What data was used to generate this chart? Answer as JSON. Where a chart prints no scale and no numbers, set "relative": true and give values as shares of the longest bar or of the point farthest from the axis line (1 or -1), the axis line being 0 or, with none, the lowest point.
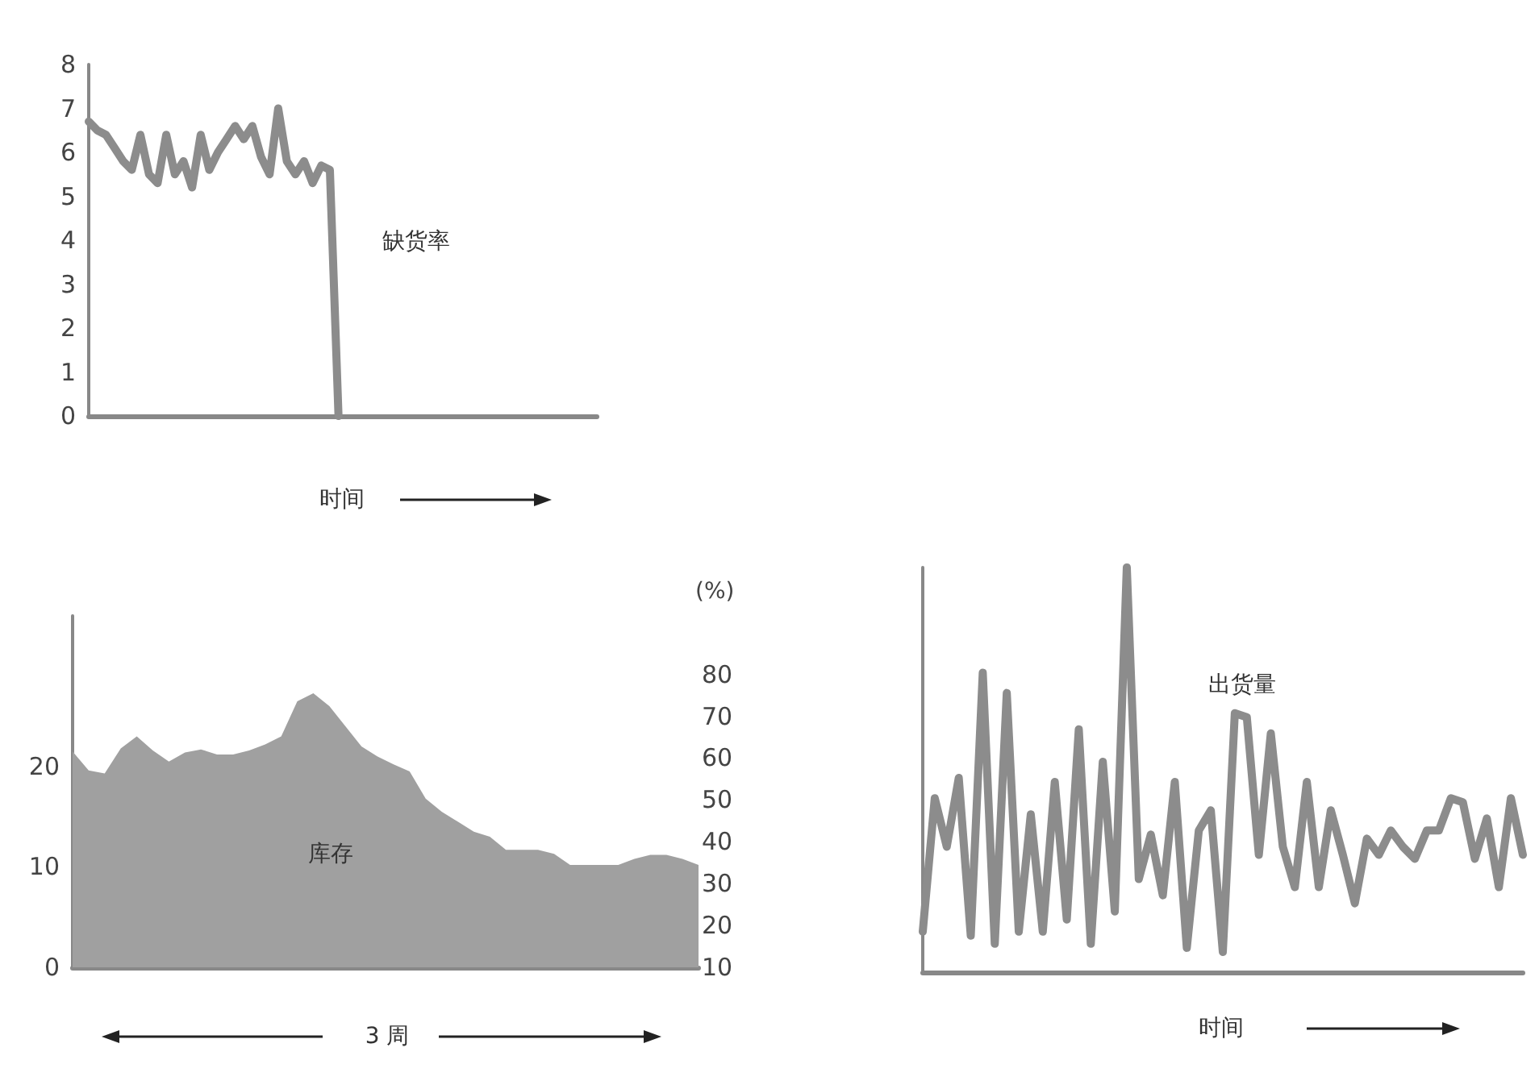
{
  "chart_data": [
    {
      "type": "line",
      "xlabel": "时间",
      "annotations": [
        "缺货率"
      ],
      "marker": "none",
      "categories": [
        null,
        null,
        null,
        null,
        null,
        null,
        null,
        null,
        null,
        null,
        null,
        null,
        null,
        null,
        null,
        null,
        null,
        null,
        null,
        null,
        null,
        null,
        null,
        null,
        null,
        null,
        null,
        null,
        null,
        null,
        null,
        null,
        null,
        null,
        null,
        null,
        null,
        null,
        null,
        null,
        null,
        null,
        null,
        null,
        null,
        null,
        null,
        null,
        null,
        null,
        null,
        null,
        null,
        null,
        null,
        null,
        null,
        null,
        null,
        null
      ],
      "series": [
        {
          "color": "#8c8c8c",
          "values": [
            6.7,
            6.5,
            6.4,
            6.1,
            5.8,
            5.6,
            6.4,
            5.5,
            5.3,
            6.4,
            5.5,
            5.8,
            5.2,
            6.4,
            5.6,
            6.0,
            6.3,
            6.6,
            6.3,
            6.6,
            5.9,
            5.5,
            7.0,
            5.8,
            5.5,
            5.8,
            5.3,
            5.7,
            5.6,
            0,
            null,
            null,
            null,
            null,
            null,
            null,
            null,
            null,
            null,
            null,
            null,
            null,
            null,
            null,
            null,
            null,
            null,
            null,
            null,
            null,
            null,
            null,
            null,
            null,
            null,
            null,
            null,
            null,
            null,
            null
          ]
        }
      ],
      "ylim": [
        0,
        8
      ],
      "yticks": [
        0,
        1,
        2,
        3,
        4,
        5,
        6,
        7,
        8
      ]
    },
    {
      "type": "area",
      "xlabel": "3 周",
      "annotations": [
        "库存"
      ],
      "marker": "none",
      "y2label": "(%)",
      "categories": [
        null,
        null,
        null,
        null,
        null,
        null,
        null,
        null,
        null,
        null,
        null,
        null,
        null,
        null,
        null,
        null,
        null,
        null,
        null,
        null,
        null,
        null,
        null,
        null,
        null,
        null,
        null,
        null,
        null,
        null,
        null,
        null,
        null,
        null,
        null,
        null,
        null,
        null,
        null,
        null
      ],
      "series": [
        {
          "color": "#a0a0a0",
          "values": [
            21.5,
            19.6,
            19.3,
            21.8,
            23.0,
            21.6,
            20.5,
            21.4,
            21.7,
            21.2,
            21.2,
            21.6,
            22.2,
            23.0,
            26.5,
            27.3,
            26.0,
            24.0,
            22.0,
            21.0,
            20.2,
            19.5,
            16.8,
            15.5,
            14.5,
            13.5,
            13.0,
            11.7,
            11.7,
            11.7,
            11.3,
            10.2,
            10.2,
            10.2,
            10.2,
            10.8,
            11.2,
            11.2,
            10.8,
            10.2
          ]
        }
      ],
      "ylim": [
        0,
        35
      ],
      "yticks": [
        0,
        10,
        20
      ],
      "y2lim": [
        10,
        94
      ],
      "y2ticks": [
        10,
        20,
        30,
        40,
        50,
        60,
        70,
        80
      ]
    },
    {
      "type": "line",
      "xlabel": "时间",
      "annotations": [
        "出货量"
      ],
      "marker": "none",
      "relative": true,
      "categories": [
        null,
        null,
        null,
        null,
        null,
        null,
        null,
        null,
        null,
        null,
        null,
        null,
        null,
        null,
        null,
        null,
        null,
        null,
        null,
        null,
        null,
        null,
        null,
        null,
        null,
        null,
        null,
        null,
        null,
        null,
        null,
        null,
        null,
        null,
        null,
        null,
        null,
        null,
        null,
        null,
        null,
        null,
        null,
        null,
        null,
        null,
        null,
        null,
        null,
        null,
        null
      ],
      "series": [
        {
          "color": "#8c8c8c",
          "values": [
            0.1,
            0.43,
            0.31,
            0.48,
            0.09,
            0.74,
            0.07,
            0.69,
            0.1,
            0.39,
            0.1,
            0.47,
            0.13,
            0.6,
            0.07,
            0.52,
            0.15,
            1.0,
            0.23,
            0.34,
            0.19,
            0.47,
            0.06,
            0.35,
            0.4,
            0.05,
            0.64,
            0.63,
            0.29,
            0.59,
            0.31,
            0.21,
            0.47,
            0.21,
            0.4,
            0.29,
            0.17,
            0.33,
            0.29,
            0.35,
            0.31,
            0.28,
            0.35,
            0.35,
            0.43,
            0.42,
            0.28,
            0.38,
            0.21,
            0.43,
            0.29
          ]
        }
      ]
    }
  ]
}
